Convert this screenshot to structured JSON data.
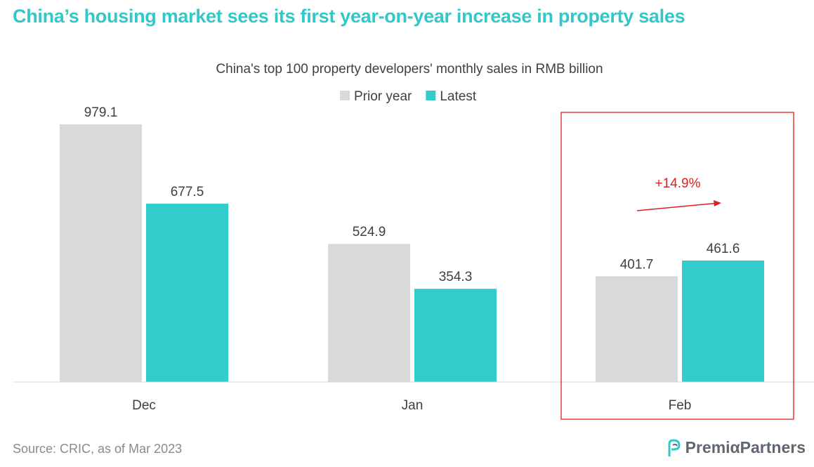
{
  "headline": "China’s housing market sees its first year-on-year increase in property sales",
  "source": "Source:  CRIC, as of Mar 2023",
  "brand": {
    "name": "PremiαPartners",
    "logo_icon": "p-leaf-logo-icon"
  },
  "colors": {
    "headline": "#33c7c7",
    "prior_year": "#d9d9d9",
    "latest": "#33cccc",
    "highlight": "#e02020",
    "text": "#404040"
  },
  "chart_data": {
    "type": "bar",
    "title": "China's top 100 property developers' monthly sales in RMB billion",
    "categories": [
      "Dec",
      "Jan",
      "Feb"
    ],
    "series": [
      {
        "name": "Prior year",
        "values": [
          979.1,
          524.9,
          401.7
        ]
      },
      {
        "name": "Latest",
        "values": [
          677.5,
          354.3,
          461.6
        ]
      }
    ],
    "ylim": [
      0,
      979.1
    ],
    "legend_position": "top-center",
    "grid": false,
    "highlight": {
      "category": "Feb",
      "annotation": "+14.9%"
    }
  }
}
